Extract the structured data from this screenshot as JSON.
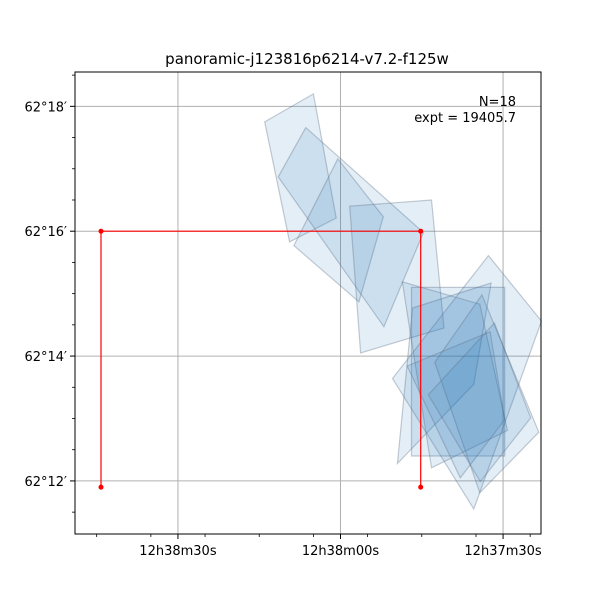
{
  "chart_data": {
    "type": "scatter",
    "title": "panoramic-j123816p6214-v7.2-f125w",
    "xlabel": "",
    "ylabel": "",
    "x_units": "seconds of RA offset from 12h38m00s (east positive, axis inverted)",
    "y_units": "arcminutes of Dec offset from 62°16'",
    "xlim": [
      49,
      -37
    ],
    "ylim": [
      -4.85,
      2.55
    ],
    "grid": true,
    "x_ticks": [
      {
        "value": 30,
        "label": "12h38m30s"
      },
      {
        "value": 0,
        "label": "12h38m00s"
      },
      {
        "value": -30,
        "label": "12h37m30s"
      }
    ],
    "y_ticks": [
      {
        "value": 2,
        "label": "62°18′"
      },
      {
        "value": 0,
        "label": "62°16′"
      },
      {
        "value": -2,
        "label": "62°14′"
      },
      {
        "value": -4,
        "label": "62°12′"
      }
    ],
    "annotations": {
      "count": "N=18",
      "exposure": "expt = 19405.7"
    },
    "footprint_color": "#1f77b4",
    "footprint_edge_color": "#5a6e84",
    "footprints": [
      [
        [
          14,
          1.75
        ],
        [
          5,
          2.2
        ],
        [
          0.8,
          0.21
        ],
        [
          9.4,
          -0.17
        ]
      ],
      [
        [
          6.4,
          1.66
        ],
        [
          11.5,
          0.87
        ],
        [
          -8,
          -1.53
        ],
        [
          -15.3,
          -0.02
        ]
      ],
      [
        [
          0.5,
          1.16
        ],
        [
          8.6,
          -0.23
        ],
        [
          -3.4,
          -1.13
        ],
        [
          -7.9,
          0.23
        ]
      ],
      [
        [
          -1.7,
          0.4
        ],
        [
          -3.7,
          -1.95
        ],
        [
          -19.1,
          -1.55
        ],
        [
          -16.8,
          0.5
        ]
      ],
      [
        [
          -13.3,
          -1.23
        ],
        [
          -27.8,
          -0.83
        ],
        [
          -24.6,
          -2.45
        ],
        [
          -10.5,
          -3.72
        ]
      ],
      [
        [
          -13.1,
          -0.9
        ],
        [
          -30.3,
          -0.9
        ],
        [
          -30.3,
          -3.6
        ],
        [
          -13.1,
          -3.6
        ]
      ],
      [
        [
          -27.3,
          -0.39
        ],
        [
          -9.6,
          -2.36
        ],
        [
          -24.6,
          -4.45
        ],
        [
          -37.1,
          -1.44
        ]
      ],
      [
        [
          -11.4,
          -0.81
        ],
        [
          -25.7,
          -1.17
        ],
        [
          -30.8,
          -3.19
        ],
        [
          -16.8,
          -3.79
        ]
      ],
      [
        [
          -17.4,
          -2.1
        ],
        [
          -26.1,
          -1.02
        ],
        [
          -36.6,
          -3.22
        ],
        [
          -25.7,
          -4.19
        ]
      ],
      [
        [
          -12.3,
          -2.16
        ],
        [
          -27.6,
          -1.61
        ],
        [
          -30.3,
          -3.02
        ],
        [
          -22.1,
          -3.95
        ]
      ],
      [
        [
          -16.2,
          -2.62
        ],
        [
          -28.4,
          -1.47
        ],
        [
          -35.1,
          -2.99
        ],
        [
          -25.8,
          -4.01
        ]
      ]
    ],
    "red_polygon": {
      "color": "#ff0000",
      "points": [
        [
          44.2,
          -4.1
        ],
        [
          44.2,
          0
        ],
        [
          -14.8,
          0
        ],
        [
          -14.8,
          -4.1
        ]
      ]
    }
  }
}
